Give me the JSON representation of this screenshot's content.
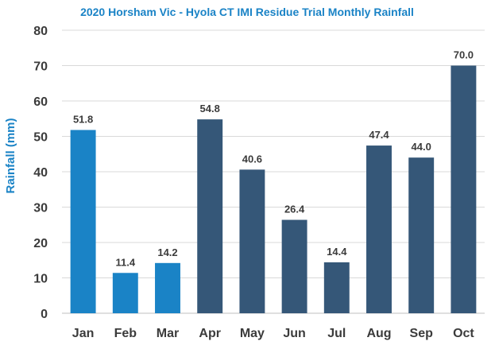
{
  "chart_data": {
    "type": "bar",
    "title": "2020 Horsham Vic - Hyola CT IMI Residue Trial Monthly Rainfall",
    "xlabel": "",
    "ylabel": "Rainfall (mm)",
    "ylim": [
      0,
      80
    ],
    "yticks": [
      "0",
      "10",
      "20",
      "30",
      "40",
      "50",
      "60",
      "70",
      "80"
    ],
    "categories": [
      "Jan",
      "Feb",
      "Mar",
      "Apr",
      "May",
      "Jun",
      "Jul",
      "Aug",
      "Sep",
      "Oct"
    ],
    "values": [
      51.8,
      11.4,
      14.2,
      54.8,
      40.6,
      26.4,
      14.4,
      47.4,
      44.0,
      70.0
    ],
    "value_labels": [
      "51.8",
      "11.4",
      "14.2",
      "54.8",
      "40.6",
      "26.4",
      "14.4",
      "47.4",
      "44.0",
      "70.0"
    ],
    "grid": true,
    "colors": {
      "title": "#1a83c6",
      "ylabel": "#1a83c6",
      "bar_light": "#1a83c6",
      "bar_dark": "#355778"
    },
    "bar_color_groups": [
      "light",
      "light",
      "light",
      "dark",
      "dark",
      "dark",
      "dark",
      "dark",
      "dark",
      "dark"
    ]
  }
}
